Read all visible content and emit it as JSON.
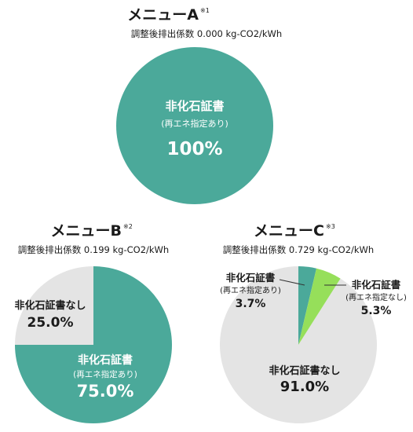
{
  "colors": {
    "teal": "#4BA99A",
    "gray": "#E4E4E4",
    "green": "#96DF5A",
    "leader": "#333333"
  },
  "chart_data": [
    {
      "type": "pie",
      "title": "メニューA",
      "title_note": "※1",
      "subtitle": "調整後排出係数 0.000 kg-CO2/kWh",
      "slices": [
        {
          "label": "非化石証書",
          "sublabel": "(再エネ指定あり)",
          "value": 100,
          "display": "100%",
          "color": "#4BA99A"
        }
      ]
    },
    {
      "type": "pie",
      "title": "メニューB",
      "title_note": "※2",
      "subtitle": "調整後排出係数 0.199 kg-CO2/kWh",
      "slices": [
        {
          "label": "非化石証書",
          "sublabel": "(再エネ指定あり)",
          "value": 75.0,
          "display": "75.0%",
          "color": "#4BA99A"
        },
        {
          "label": "非化石証書なし",
          "sublabel": "",
          "value": 25.0,
          "display": "25.0%",
          "color": "#E4E4E4"
        }
      ]
    },
    {
      "type": "pie",
      "title": "メニューC",
      "title_note": "※3",
      "subtitle": "調整後排出係数 0.729 kg-CO2/kWh",
      "slices": [
        {
          "label": "非化石証書",
          "sublabel": "(再エネ指定あり)",
          "value": 3.7,
          "display": "3.7%",
          "color": "#4BA99A"
        },
        {
          "label": "非化石証書",
          "sublabel": "(再エネ指定なし)",
          "value": 5.3,
          "display": "5.3%",
          "color": "#96DF5A"
        },
        {
          "label": "非化石証書なし",
          "sublabel": "",
          "value": 91.0,
          "display": "91.0%",
          "color": "#E4E4E4"
        }
      ]
    }
  ]
}
